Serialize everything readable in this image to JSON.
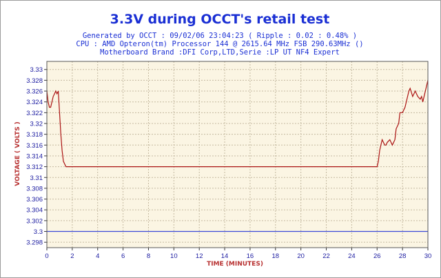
{
  "chart_data": {
    "type": "line",
    "title": "3.3V during OCCT's retail test",
    "subtitle_lines": [
      "Generated by OCCT : 09/02/06 23:04:23 ( Ripple : 0.02 : 0.48% )",
      "CPU : AMD Opteron(tm) Processor 144   @ 2615.64 MHz FSB 290.63MHz ()",
      "Motherboard Brand :DFI Corp,LTD,Serie :LP UT NF4 Expert"
    ],
    "xlabel": "TIME (MINUTES)",
    "ylabel": "VOLTAGE ( VOLTS )",
    "xlim": [
      0,
      30
    ],
    "ylim": [
      3.297,
      3.3315
    ],
    "x_ticks": [
      "0",
      "2",
      "4",
      "6",
      "8",
      "10",
      "12",
      "14",
      "16",
      "18",
      "20",
      "22",
      "24",
      "26",
      "28",
      "30"
    ],
    "y_ticks": [
      "3.33",
      "3.328",
      "3.326",
      "3.324",
      "3.322",
      "3.32",
      "3.318",
      "3.316",
      "3.314",
      "3.312",
      "3.31",
      "3.308",
      "3.306",
      "3.304",
      "3.302",
      "3.3",
      "3.298"
    ],
    "grid": true,
    "colors": {
      "voltage": "#aa1111",
      "reference": "#3a48d8",
      "plot_bg": "#fbf5e3",
      "grid": "#c4b9a0"
    },
    "series": [
      {
        "color": "#aa1111",
        "x": [
          0,
          0.1,
          0.2,
          0.3,
          0.4,
          0.5,
          0.6,
          0.7,
          0.8,
          0.9,
          1.0,
          1.1,
          1.2,
          1.3,
          1.5,
          1.6,
          1.7,
          1.8,
          26.0,
          26.1,
          26.2,
          26.3,
          26.4,
          26.5,
          26.6,
          26.7,
          26.8,
          27.0,
          27.2,
          27.4,
          27.5,
          27.7,
          27.8,
          28.0,
          28.2,
          28.4,
          28.5,
          28.6,
          28.8,
          29.0,
          29.2,
          29.4,
          29.5,
          29.6,
          29.8,
          30.0
        ],
        "y": [
          3.326,
          3.324,
          3.323,
          3.323,
          3.324,
          3.325,
          3.3255,
          3.326,
          3.3255,
          3.326,
          3.322,
          3.318,
          3.315,
          3.313,
          3.312,
          3.312,
          3.312,
          3.312,
          3.312,
          3.313,
          3.315,
          3.316,
          3.317,
          3.3165,
          3.316,
          3.316,
          3.3165,
          3.317,
          3.316,
          3.317,
          3.319,
          3.32,
          3.322,
          3.322,
          3.323,
          3.325,
          3.326,
          3.3265,
          3.325,
          3.326,
          3.325,
          3.3245,
          3.325,
          3.324,
          3.326,
          3.328
        ]
      },
      {
        "color": "#3a48d8",
        "x": [
          0,
          30
        ],
        "y": [
          3.3,
          3.3
        ]
      }
    ]
  }
}
